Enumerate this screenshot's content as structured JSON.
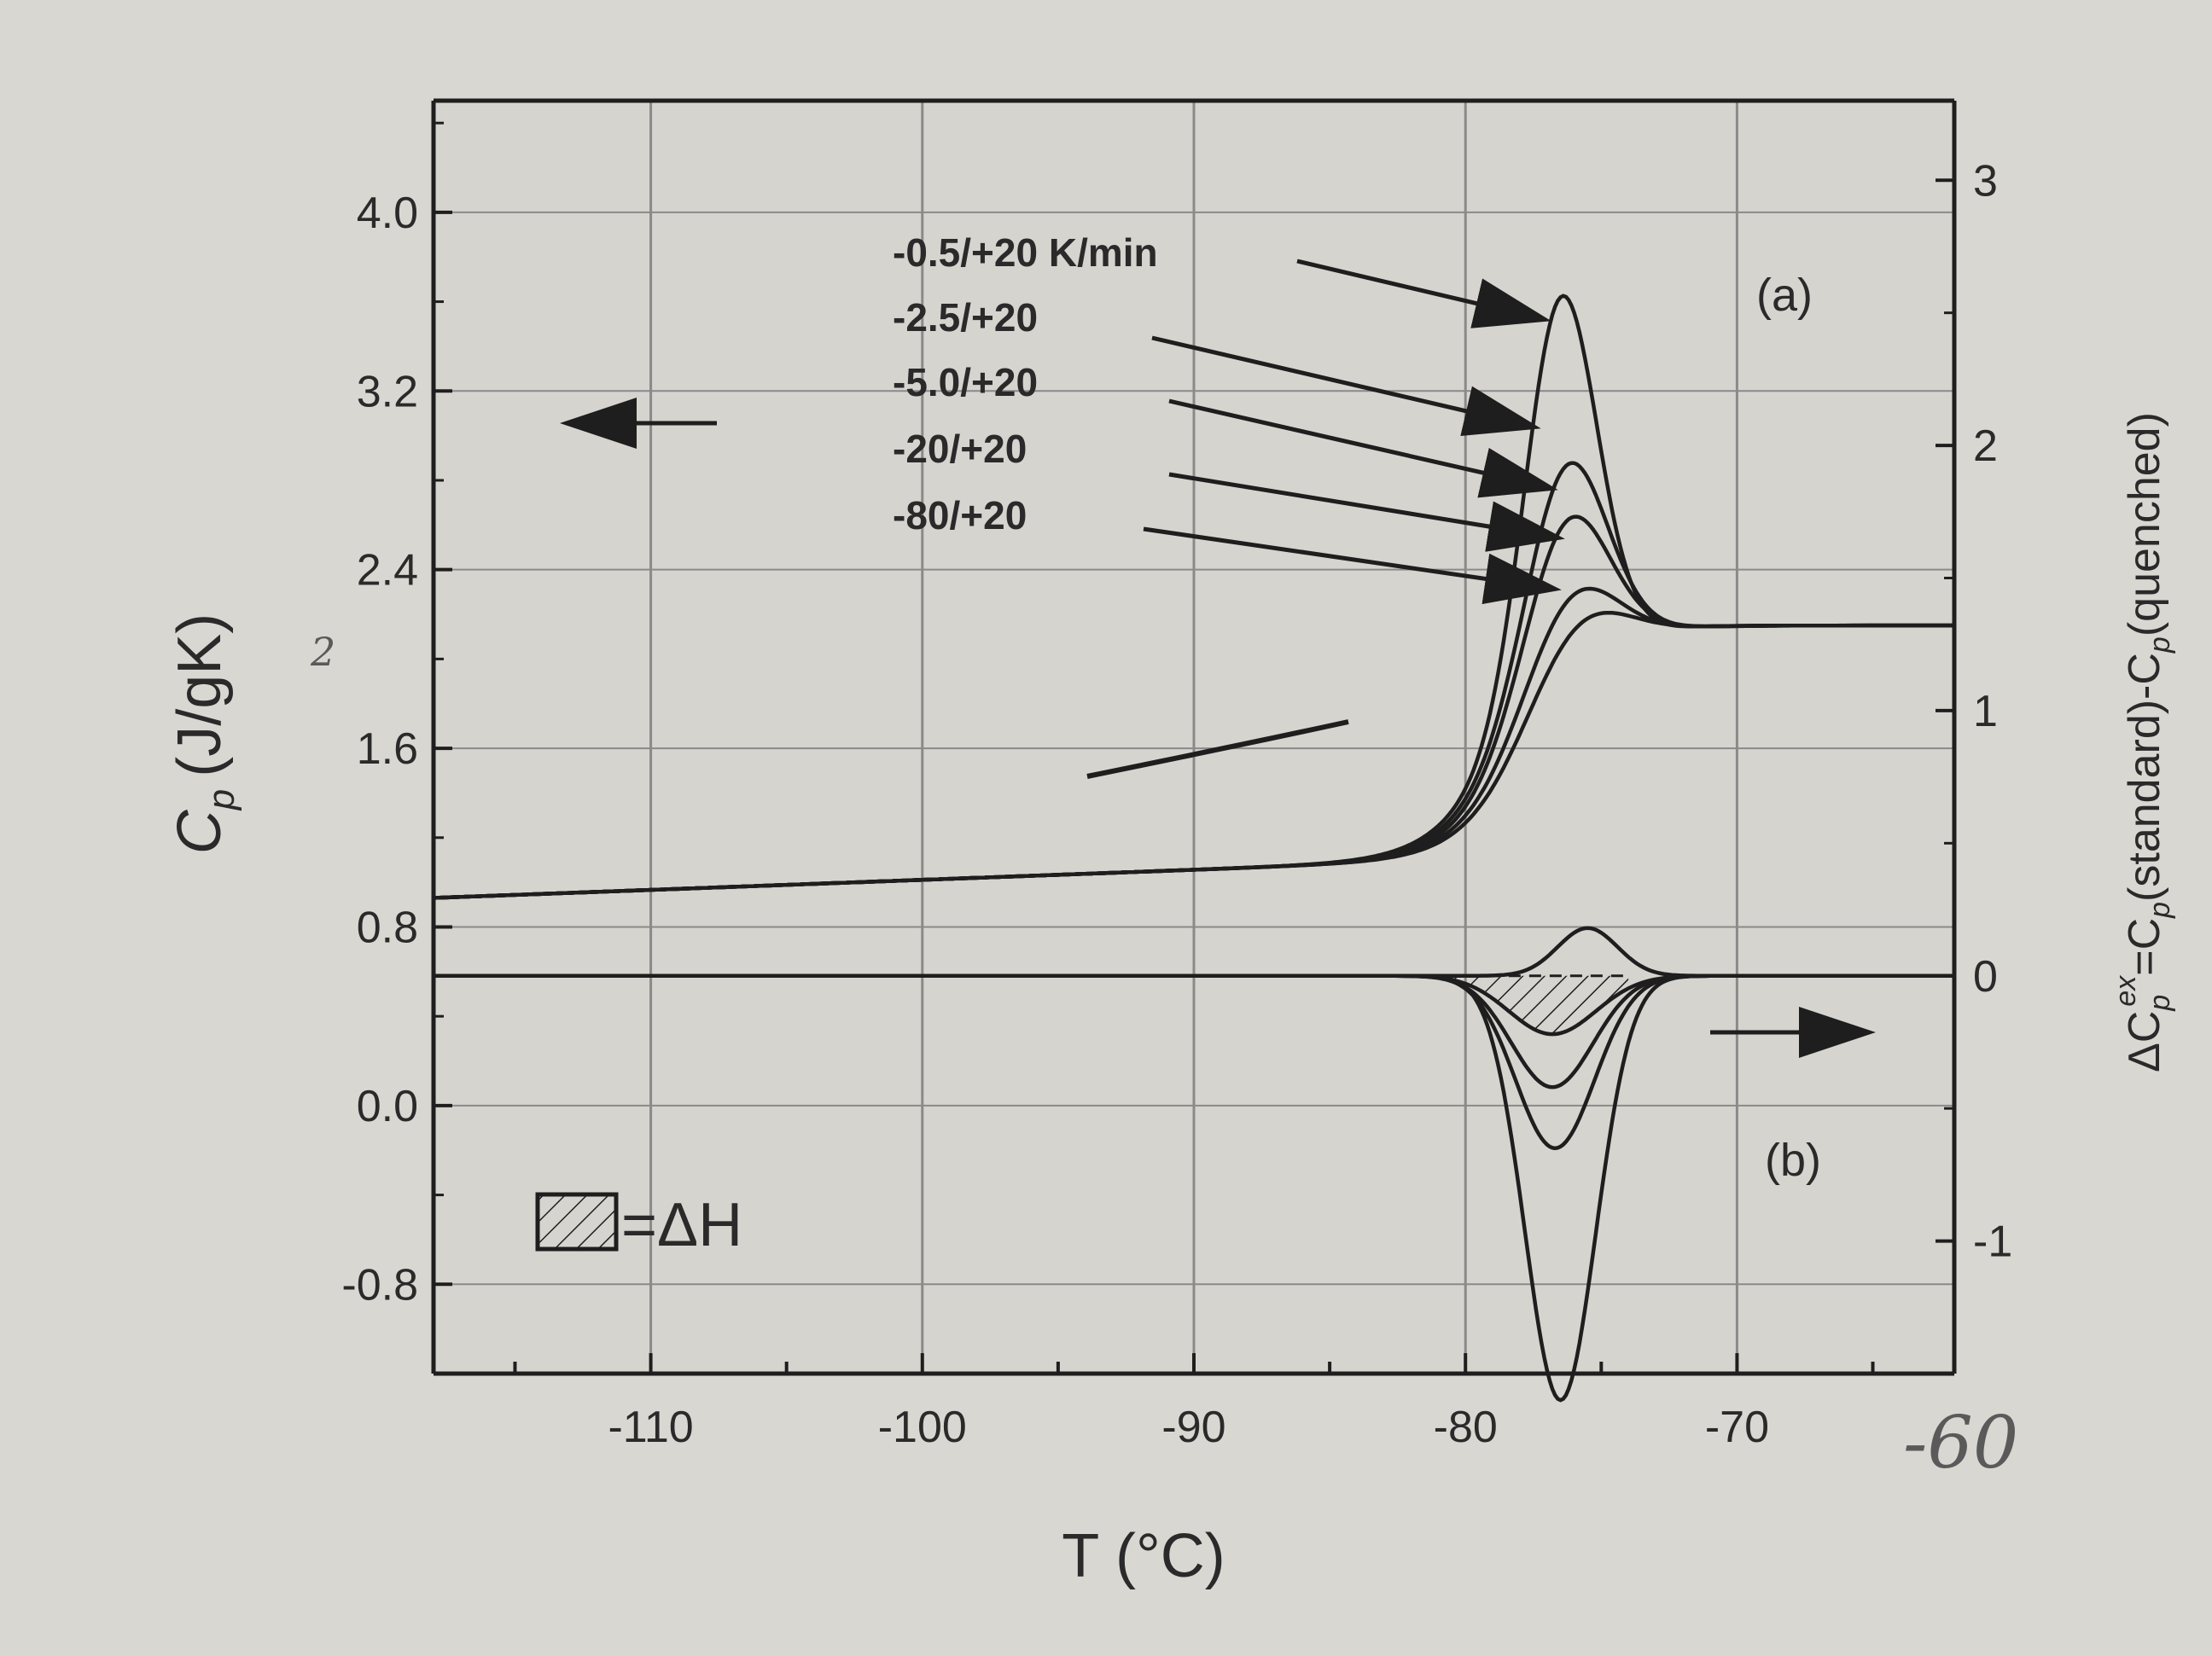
{
  "chart_data": {
    "type": "line",
    "xlabel": "T (°C)",
    "ylabel_left": "C",
    "ylabel_left_sub": "p",
    "ylabel_left_unit": "(J/gK)",
    "ylabel_right": "ΔC",
    "ylabel_right_sup": "ex",
    "ylabel_right_mid": "=C",
    "ylabel_right_rest1": "(standard)-C",
    "ylabel_right_rest2": "(quenched)",
    "xlim": [
      -118,
      -62
    ],
    "ylim_left": [
      -1.2,
      4.5
    ],
    "ylim_right": [
      -1.5,
      3.3
    ],
    "x_ticks": [
      -110,
      -100,
      -90,
      -80,
      -70
    ],
    "x_tick_labels": [
      "-110",
      "-100",
      "-90",
      "-80",
      "-70"
    ],
    "y_left_ticks": [
      -0.8,
      0.0,
      0.8,
      1.6,
      2.4,
      3.2,
      4.0
    ],
    "y_left_tick_labels": [
      "-0.8",
      "0.0",
      "0.8",
      "1.6",
      "2.4",
      "3.2",
      "4.0"
    ],
    "y_right_ticks": [
      -1,
      0,
      1,
      2,
      3
    ],
    "y_right_tick_labels": [
      "-1",
      "0",
      "1",
      "2",
      "3"
    ],
    "grid": true,
    "panel_a_label": "(a)",
    "panel_b_label": "(b)",
    "hatch_legend_text": "=ΔH",
    "handwritten_mark_left": "2",
    "handwritten_tick": "-60",
    "series": [
      {
        "name": "-0.5/+20 K/min",
        "axis": "left",
        "baseline": 0.93,
        "step": 2.15,
        "peak_center": -76.5,
        "peak_height": 1.65,
        "peak_width": 1.3
      },
      {
        "name": "-2.5/+20",
        "axis": "left",
        "baseline": 0.93,
        "step": 2.15,
        "peak_center": -76.3,
        "peak_height": 0.9,
        "peak_width": 1.45
      },
      {
        "name": "-5.0/+20",
        "axis": "left",
        "baseline": 0.93,
        "step": 2.15,
        "peak_center": -76.3,
        "peak_height": 0.68,
        "peak_width": 1.5
      },
      {
        "name": "-20/+20",
        "axis": "left",
        "baseline": 0.93,
        "step": 2.15,
        "peak_center": -76.2,
        "peak_height": 0.35,
        "peak_width": 1.6
      },
      {
        "name": "-80/+20",
        "axis": "left",
        "baseline": 0.93,
        "step": 2.15,
        "peak_center": -76.0,
        "peak_height": 0.22,
        "peak_width": 1.7
      }
    ],
    "excess_series": [
      {
        "axis": "right",
        "min_center": -76.5,
        "min_value": -1.6,
        "width": 1.3
      },
      {
        "axis": "right",
        "min_center": -76.7,
        "min_value": -0.65,
        "width": 1.45
      },
      {
        "axis": "right",
        "min_center": -76.8,
        "min_value": -0.42,
        "width": 1.5
      },
      {
        "axis": "right",
        "min_center": -76.8,
        "min_value": -0.22,
        "width": 1.6
      },
      {
        "axis": "right",
        "min_center": -75.5,
        "min_value": 0.18,
        "width": 1.1
      }
    ]
  },
  "colors": {
    "background": "#d9d7d2",
    "plot_background": "#d6d4cf",
    "ink": "#1e1e1e",
    "grid": "#8a8a8a",
    "faded_text": "#555555"
  }
}
